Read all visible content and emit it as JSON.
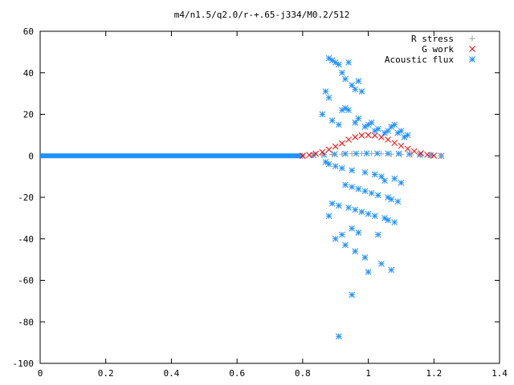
{
  "chart_data": {
    "type": "scatter",
    "title": "m4/n1.5/q2.0/r-+.65-j334/M0.2/512",
    "xlabel": "",
    "ylabel": "",
    "xlim": [
      0,
      1.4
    ],
    "ylim": [
      -100,
      60
    ],
    "xticks": [
      0,
      0.2,
      0.4,
      0.6,
      0.8,
      1,
      1.2,
      1.4
    ],
    "yticks": [
      -100,
      -80,
      -60,
      -40,
      -20,
      0,
      20,
      40,
      60
    ],
    "xtick_labels": [
      "0",
      "0.2",
      "0.4",
      "0.6",
      "0.8",
      "1",
      "1.2",
      "1.4"
    ],
    "ytick_labels": [
      "-100",
      "-80",
      "-60",
      "-40",
      "-20",
      "0",
      "20",
      "40",
      "60"
    ],
    "grid": false,
    "legend_position": "top-right",
    "series": [
      {
        "name": "R stress",
        "marker": "plus",
        "color": "#a0a0a0",
        "x": [
          0.8,
          0.83,
          0.86,
          0.89,
          0.92,
          0.95,
          0.98,
          1.01,
          1.04,
          1.07,
          1.1,
          1.13,
          1.16,
          1.19,
          1.22
        ],
        "y": [
          0,
          0.2,
          0.4,
          0.6,
          0.8,
          1.0,
          1.1,
          1.1,
          1.0,
          0.8,
          0.6,
          0.4,
          0.2,
          0.1,
          0
        ]
      },
      {
        "name": "G work",
        "marker": "cross",
        "color": "#ff0000",
        "x": [
          0.8,
          0.82,
          0.84,
          0.86,
          0.88,
          0.9,
          0.92,
          0.94,
          0.96,
          0.98,
          1.0,
          1.02,
          1.04,
          1.06,
          1.08,
          1.1,
          1.12,
          1.14,
          1.16,
          1.18,
          1.2
        ],
        "y": [
          0,
          0.4,
          1.0,
          1.8,
          3.0,
          4.5,
          6.0,
          7.8,
          9.0,
          9.8,
          10.0,
          9.8,
          9.0,
          7.8,
          6.2,
          4.8,
          3.4,
          2.2,
          1.2,
          0.5,
          0.1
        ]
      },
      {
        "name": "Acoustic flux",
        "marker": "star",
        "color": "#1e90ff",
        "x": [
          0.88,
          0.89,
          0.9,
          0.91,
          0.92,
          0.93,
          0.94,
          0.95,
          0.96,
          0.97,
          0.98,
          0.87,
          0.88,
          0.92,
          0.93,
          0.94,
          0.86,
          0.89,
          0.91,
          0.96,
          0.97,
          0.99,
          1.0,
          1.01,
          1.02,
          1.03,
          1.05,
          1.06,
          1.07,
          1.08,
          1.09,
          1.1,
          1.11,
          1.12,
          0.87,
          0.88,
          0.9,
          0.92,
          0.95,
          0.99,
          1.02,
          1.04,
          1.05,
          1.08,
          1.1,
          0.93,
          0.95,
          0.97,
          0.99,
          1.01,
          1.03,
          1.06,
          1.07,
          1.09,
          0.89,
          0.91,
          0.94,
          0.96,
          0.98,
          1.0,
          1.02,
          1.05,
          1.06,
          1.08,
          0.95,
          0.97,
          1.03,
          0.9,
          0.93,
          0.96,
          0.99,
          1.04,
          1.07,
          0.88,
          0.92,
          1.0,
          0.91,
          0.95
        ],
        "y": [
          47,
          46,
          45,
          44,
          40,
          37,
          45,
          34,
          32,
          36,
          31,
          31,
          28,
          22,
          23,
          22,
          20,
          17,
          15,
          16,
          18,
          14,
          15,
          16,
          12,
          13,
          11,
          12,
          14,
          15,
          11,
          12,
          9,
          10,
          -3,
          -4,
          -5,
          -6,
          -7,
          -8,
          -9,
          -10,
          -12,
          -11,
          -13,
          -14,
          -15,
          -16,
          -17,
          -18,
          -19,
          -20,
          -21,
          -22,
          -23,
          -24,
          -25,
          -26,
          -27,
          -28,
          -29,
          -30,
          -31,
          -32,
          -35,
          -37,
          -38,
          -40,
          -43,
          -46,
          -49,
          -52,
          -55,
          -29,
          -38,
          -56,
          -87,
          -67
        ]
      }
    ]
  }
}
